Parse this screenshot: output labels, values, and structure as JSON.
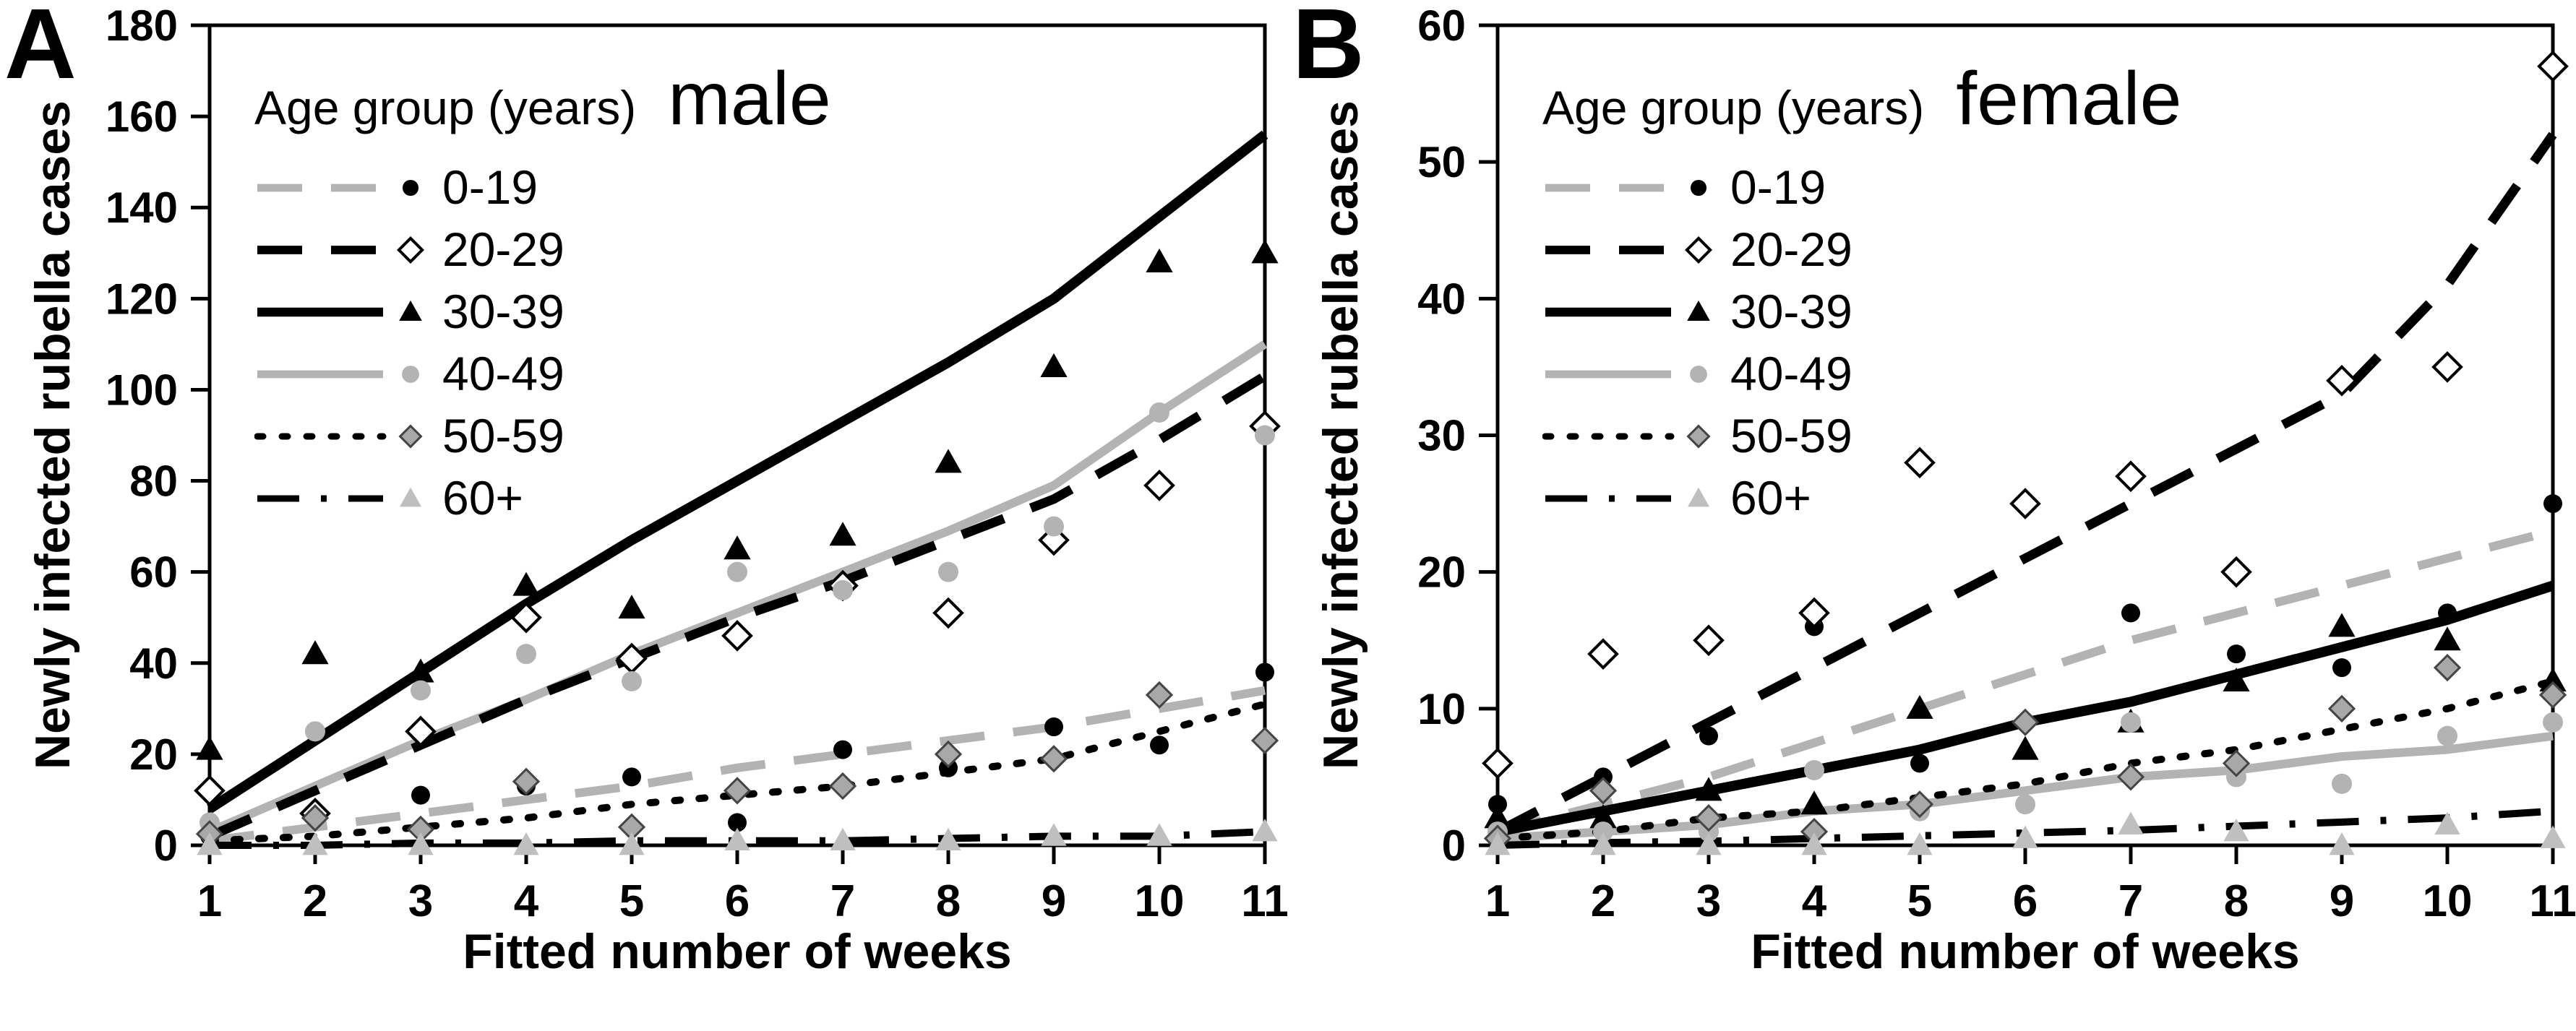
{
  "figure_accent_colors": {
    "black": "#000000",
    "gray": "#b3b3b3",
    "gray_diamond_fill": "#a8a8a8",
    "gray_diamond_stroke": "#444444",
    "light_gray_triangle": "#bfbfbf",
    "open_marker_fill": "#ffffff"
  },
  "chart_data": [
    {
      "type": "scatter",
      "panel_label": "A",
      "title": "male",
      "legend_title": "Age group (years)",
      "xlabel": "Fitted number of weeks",
      "ylabel": "Newly infected rubella cases",
      "x": [
        1,
        2,
        3,
        4,
        5,
        6,
        7,
        8,
        9,
        10,
        11
      ],
      "ylim": [
        0,
        180
      ],
      "ytick_step": 20,
      "legend_position": "top-left",
      "grid": false,
      "series": [
        {
          "name": "0-19",
          "marker": {
            "shape": "circle",
            "fill": "#000000",
            "stroke": "none",
            "size": 13
          },
          "line": {
            "color": "#b3b3b3",
            "style": "dashed",
            "width": 12
          },
          "points": [
            2,
            6,
            11,
            13,
            15,
            5,
            21,
            17,
            26,
            22,
            38
          ],
          "fit": [
            1,
            4,
            7,
            10,
            13,
            17,
            20,
            23,
            26,
            30,
            34
          ]
        },
        {
          "name": "20-29",
          "marker": {
            "shape": "diamond",
            "fill": "#ffffff",
            "stroke": "#000000",
            "size": 19,
            "stroke_width": 4
          },
          "line": {
            "color": "#000000",
            "style": "dashed",
            "width": 13
          },
          "points": [
            12,
            7,
            25,
            50,
            41,
            46,
            57,
            51,
            67,
            79,
            92
          ],
          "fit": [
            2,
            12,
            22,
            32,
            41,
            50,
            58,
            67,
            76,
            89,
            103
          ]
        },
        {
          "name": "30-39",
          "marker": {
            "shape": "triangle",
            "fill": "#000000",
            "stroke": "none",
            "size": 19
          },
          "line": {
            "color": "#000000",
            "style": "solid",
            "width": 14
          },
          "points": [
            21,
            42,
            38,
            57,
            52,
            65,
            68,
            84,
            105,
            128,
            130
          ],
          "fit": [
            8,
            23,
            38,
            53,
            67,
            80,
            93,
            106,
            120,
            138,
            156
          ]
        },
        {
          "name": "40-49",
          "marker": {
            "shape": "circle",
            "fill": "#b3b3b3",
            "stroke": "none",
            "size": 14
          },
          "line": {
            "color": "#b3b3b3",
            "style": "solid",
            "width": 12
          },
          "points": [
            5,
            25,
            34,
            42,
            36,
            60,
            56,
            60,
            70,
            95,
            90
          ],
          "fit": [
            3,
            13,
            23,
            32,
            42,
            51,
            60,
            69,
            79,
            95,
            110
          ]
        },
        {
          "name": "50-59",
          "marker": {
            "shape": "diamond",
            "fill": "#a8a8a8",
            "stroke": "#444444",
            "size": 17,
            "stroke_width": 3
          },
          "line": {
            "color": "#000000",
            "style": "dotted",
            "width": 10
          },
          "points": [
            2.5,
            6,
            3.5,
            14,
            4,
            12,
            13,
            20,
            19,
            33,
            23
          ],
          "fit": [
            1,
            2,
            4,
            6,
            9,
            11,
            13,
            16,
            19,
            25,
            31
          ]
        },
        {
          "name": "60+",
          "marker": {
            "shape": "triangle",
            "fill": "#bfbfbf",
            "stroke": "none",
            "size": 18
          },
          "line": {
            "color": "#000000",
            "style": "dash-dot",
            "width": 10
          },
          "points": [
            0,
            0,
            0,
            0,
            0,
            1,
            1,
            1,
            2,
            2,
            3
          ],
          "fit": [
            0,
            0,
            0.5,
            0.5,
            1,
            1,
            1,
            1.5,
            2,
            2,
            3
          ]
        }
      ]
    },
    {
      "type": "scatter",
      "panel_label": "B",
      "title": "female",
      "legend_title": "Age group (years)",
      "xlabel": "Fitted number of weeks",
      "ylabel": "Newly infected rubella cases",
      "x": [
        1,
        2,
        3,
        4,
        5,
        6,
        7,
        8,
        9,
        10,
        11
      ],
      "ylim": [
        0,
        60
      ],
      "ytick_step": 10,
      "legend_position": "top-left",
      "grid": false,
      "series": [
        {
          "name": "0-19",
          "marker": {
            "shape": "circle",
            "fill": "#000000",
            "stroke": "none",
            "size": 13
          },
          "line": {
            "color": "#b3b3b3",
            "style": "dashed",
            "width": 12
          },
          "points": [
            3,
            5,
            8,
            16,
            6,
            9,
            17,
            14,
            13,
            17,
            25
          ],
          "fit": [
            1,
            3,
            5,
            7.5,
            10,
            12.5,
            15,
            17,
            19,
            21,
            23
          ]
        },
        {
          "name": "20-29",
          "marker": {
            "shape": "diamond",
            "fill": "#ffffff",
            "stroke": "#000000",
            "size": 19,
            "stroke_width": 4
          },
          "line": {
            "color": "#000000",
            "style": "dashed",
            "width": 13
          },
          "points": [
            6,
            14,
            15,
            17,
            28,
            25,
            27,
            20,
            34,
            35,
            57
          ],
          "fit": [
            1,
            5,
            9,
            13,
            17,
            21,
            25,
            29,
            33,
            41,
            52
          ]
        },
        {
          "name": "30-39",
          "marker": {
            "shape": "triangle",
            "fill": "#000000",
            "stroke": "none",
            "size": 19
          },
          "line": {
            "color": "#000000",
            "style": "solid",
            "width": 14
          },
          "points": [
            2,
            2,
            4,
            3,
            10,
            7,
            9,
            12,
            16,
            15,
            12
          ],
          "fit": [
            1,
            2.5,
            4,
            5.5,
            7,
            9,
            10.5,
            12.5,
            14.5,
            16.5,
            19
          ]
        },
        {
          "name": "40-49",
          "marker": {
            "shape": "circle",
            "fill": "#b3b3b3",
            "stroke": "none",
            "size": 14
          },
          "line": {
            "color": "#b3b3b3",
            "style": "solid",
            "width": 12
          },
          "points": [
            1,
            1,
            1,
            5.5,
            2.5,
            3,
            9,
            5,
            4.5,
            8,
            9
          ],
          "fit": [
            0.5,
            1,
            1.5,
            2.5,
            3,
            4,
            5,
            5.5,
            6.5,
            7,
            8
          ]
        },
        {
          "name": "50-59",
          "marker": {
            "shape": "diamond",
            "fill": "#a8a8a8",
            "stroke": "#444444",
            "size": 17,
            "stroke_width": 3
          },
          "line": {
            "color": "#000000",
            "style": "dotted",
            "width": 10
          },
          "points": [
            0.5,
            4,
            2,
            1,
            3,
            9,
            5,
            6,
            10,
            13,
            11
          ],
          "fit": [
            0.5,
            1,
            2,
            2.5,
            3.5,
            4.5,
            6,
            7,
            8.5,
            10,
            12
          ]
        },
        {
          "name": "60+",
          "marker": {
            "shape": "triangle",
            "fill": "#bfbfbf",
            "stroke": "none",
            "size": 18
          },
          "line": {
            "color": "#000000",
            "style": "dash-dot",
            "width": 10
          },
          "points": [
            0,
            0,
            0,
            0,
            0,
            0.5,
            1.5,
            1,
            0,
            1.5,
            0.5
          ],
          "fit": [
            0,
            0.2,
            0.3,
            0.5,
            0.7,
            0.9,
            1.1,
            1.4,
            1.7,
            2,
            2.5
          ]
        }
      ]
    }
  ]
}
